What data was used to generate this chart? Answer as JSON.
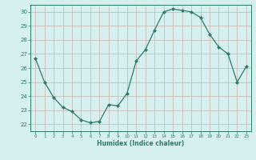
{
  "x": [
    0,
    1,
    2,
    3,
    4,
    5,
    6,
    7,
    8,
    9,
    10,
    11,
    12,
    13,
    14,
    15,
    16,
    17,
    18,
    19,
    20,
    21,
    22,
    23
  ],
  "y": [
    26.7,
    25.0,
    23.9,
    23.2,
    22.9,
    22.3,
    22.1,
    22.2,
    23.4,
    23.3,
    24.2,
    26.5,
    27.3,
    28.7,
    30.0,
    30.2,
    30.1,
    30.0,
    29.6,
    28.4,
    27.5,
    27.0,
    25.0,
    26.1
  ],
  "xlabel": "Humidex (Indice chaleur)",
  "ylim": [
    21.5,
    30.5
  ],
  "xlim": [
    -0.5,
    23.5
  ],
  "line_color": "#2d7d6e",
  "marker_color": "#2d7d6e",
  "bg_color": "#d6efef",
  "grid_color": "#c8b0b0",
  "axis_color": "#2d7d6e",
  "tick_color": "#2d7d6e",
  "yticks": [
    22,
    23,
    24,
    25,
    26,
    27,
    28,
    29,
    30
  ],
  "xticks": [
    0,
    1,
    2,
    3,
    4,
    5,
    6,
    7,
    8,
    9,
    10,
    11,
    12,
    13,
    14,
    15,
    16,
    17,
    18,
    19,
    20,
    21,
    22,
    23
  ]
}
